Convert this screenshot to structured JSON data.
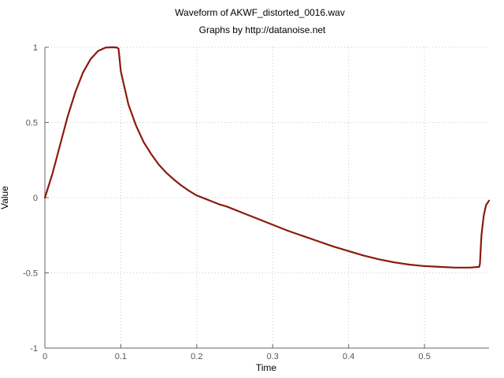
{
  "chart_data": {
    "type": "line",
    "title": "Waveform of AKWF_distorted_0016.wav",
    "subtitle": "Graphs by http://datanoise.net",
    "xlabel": "Time",
    "ylabel": "Value",
    "xlim": [
      0,
      0.585
    ],
    "ylim": [
      -1,
      1
    ],
    "xticks": [
      0,
      0.1,
      0.2,
      0.3,
      0.4,
      0.5
    ],
    "xtick_labels": [
      "0",
      "0.1",
      "0.2",
      "0.3",
      "0.4",
      "0.5"
    ],
    "yticks": [
      -1,
      -0.5,
      0,
      0.5,
      1
    ],
    "ytick_labels": [
      "-1",
      "-0.5",
      "0",
      "0.5",
      "1"
    ],
    "grid": true,
    "colors": {
      "line": "#8b1a10",
      "axis": "#666666",
      "grid": "#c8c8c8"
    },
    "series": [
      {
        "x": [
          0,
          0.01,
          0.02,
          0.03,
          0.04,
          0.05,
          0.06,
          0.07,
          0.08,
          0.09,
          0.095,
          0.097,
          0.1,
          0.11,
          0.12,
          0.13,
          0.14,
          0.15,
          0.16,
          0.17,
          0.18,
          0.19,
          0.2,
          0.21,
          0.22,
          0.23,
          0.24,
          0.26,
          0.28,
          0.3,
          0.32,
          0.34,
          0.36,
          0.38,
          0.4,
          0.42,
          0.44,
          0.46,
          0.48,
          0.5,
          0.52,
          0.54,
          0.56,
          0.572,
          0.573,
          0.575,
          0.578,
          0.581,
          0.585
        ],
        "y": [
          0.0,
          0.16,
          0.35,
          0.54,
          0.7,
          0.83,
          0.92,
          0.975,
          0.998,
          1.0,
          0.998,
          0.99,
          0.84,
          0.62,
          0.48,
          0.37,
          0.29,
          0.22,
          0.165,
          0.12,
          0.08,
          0.045,
          0.015,
          -0.005,
          -0.025,
          -0.045,
          -0.06,
          -0.1,
          -0.14,
          -0.18,
          -0.22,
          -0.255,
          -0.29,
          -0.325,
          -0.355,
          -0.385,
          -0.41,
          -0.43,
          -0.445,
          -0.455,
          -0.46,
          -0.465,
          -0.465,
          -0.46,
          -0.44,
          -0.25,
          -0.12,
          -0.05,
          -0.02
        ]
      }
    ]
  }
}
